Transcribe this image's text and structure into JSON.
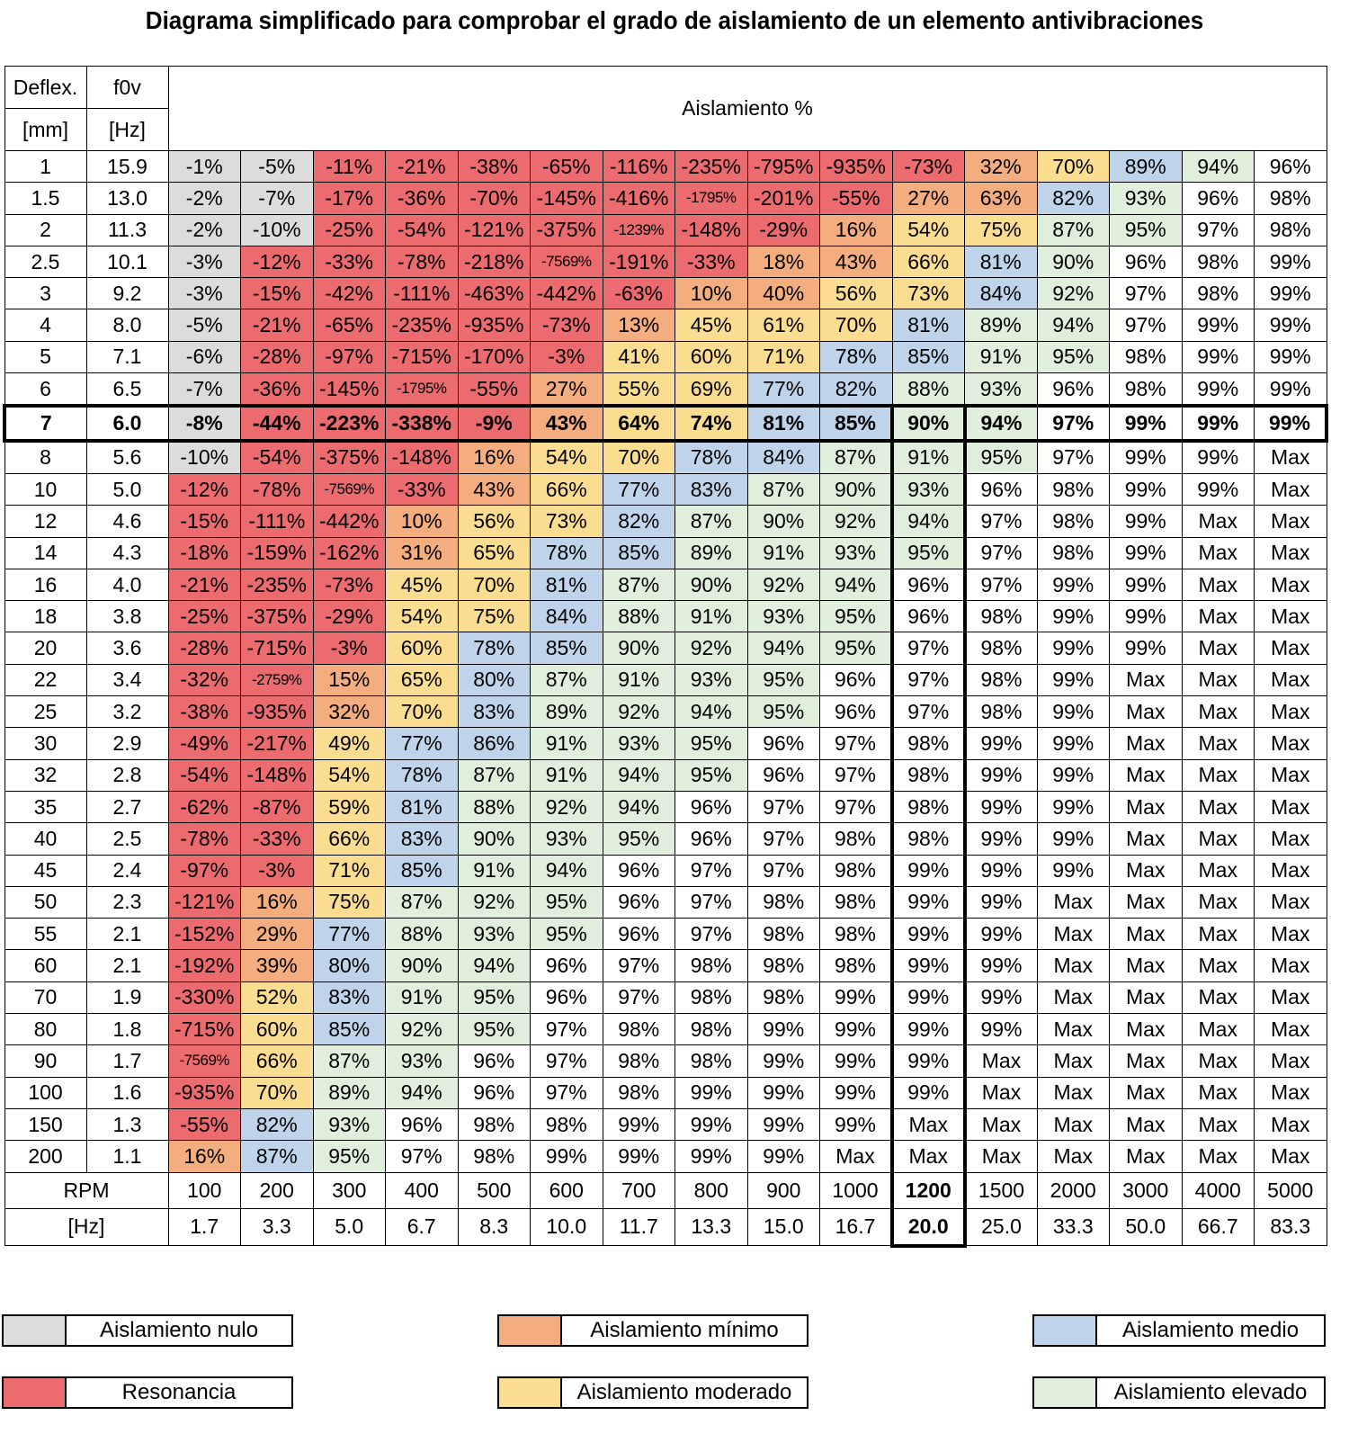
{
  "title": "Diagrama simplificado para comprobar el grado de aislamiento de un elemento antivibraciones",
  "colors": {
    "nulo": "#dcdcdc",
    "resonancia": "#ec6b6e",
    "minimo": "#f4ad7e",
    "moderado": "#fbdd92",
    "medio": "#bfd4ea",
    "elevado": "#e0efdc"
  },
  "header": {
    "deflex": "Deflex.",
    "f0v": "f0v",
    "mm": "[mm]",
    "hz": "[Hz]",
    "aislamiento": "Aislamiento %"
  },
  "footer": {
    "rpm_label": "RPM",
    "hz_label": "[Hz]"
  },
  "legend": [
    {
      "label": "Aislamiento nulo",
      "key": "nulo"
    },
    {
      "label": "Aislamiento mínimo",
      "key": "minimo"
    },
    {
      "label": "Aislamiento medio",
      "key": "medio"
    },
    {
      "label": "Resonancia",
      "key": "resonancia"
    },
    {
      "label": "Aislamiento moderado",
      "key": "moderado"
    },
    {
      "label": "Aislamiento elevado",
      "key": "elevado"
    }
  ],
  "chart_data": {
    "type": "table",
    "title": "Diagrama simplificado para comprobar el grado de aislamiento de un elemento antivibraciones",
    "highlight": {
      "row_deflex": "7",
      "col_rpm": "1200"
    },
    "rpm": [
      "100",
      "200",
      "300",
      "400",
      "500",
      "600",
      "700",
      "800",
      "900",
      "1000",
      "1200",
      "1500",
      "2000",
      "3000",
      "4000",
      "5000"
    ],
    "hz": [
      "1.7",
      "3.3",
      "5.0",
      "6.7",
      "8.3",
      "10.0",
      "11.7",
      "13.3",
      "15.0",
      "16.7",
      "20.0",
      "25.0",
      "33.3",
      "50.0",
      "66.7",
      "83.3"
    ],
    "rows": [
      {
        "deflex": "1",
        "f0v": "15.9",
        "values": [
          "-1%",
          "-5%",
          "-11%",
          "-21%",
          "-38%",
          "-65%",
          "-116%",
          "-235%",
          "-795%",
          "-935%",
          "-73%",
          "32%",
          "70%",
          "89%",
          "94%",
          "96%"
        ],
        "cat": "NNRRRRRRRRRIMDE-"
      },
      {
        "deflex": "1.5",
        "f0v": "13.0",
        "values": [
          "-2%",
          "-7%",
          "-17%",
          "-36%",
          "-70%",
          "-145%",
          "-416%",
          "-1795%",
          "-201%",
          "-55%",
          "27%",
          "63%",
          "82%",
          "93%",
          "96%",
          "98%"
        ],
        "cat": "NNRRRRRRRRIIDE--"
      },
      {
        "deflex": "2",
        "f0v": "11.3",
        "values": [
          "-2%",
          "-10%",
          "-25%",
          "-54%",
          "-121%",
          "-375%",
          "-1239%",
          "-148%",
          "-29%",
          "16%",
          "54%",
          "75%",
          "87%",
          "95%",
          "97%",
          "98%"
        ],
        "cat": "NNRRRRRRRIMMEE--"
      },
      {
        "deflex": "2.5",
        "f0v": "10.1",
        "values": [
          "-3%",
          "-12%",
          "-33%",
          "-78%",
          "-218%",
          "-7569%",
          "-191%",
          "-33%",
          "18%",
          "43%",
          "66%",
          "81%",
          "90%",
          "96%",
          "98%",
          "99%"
        ],
        "cat": "NRRRRRRRIIMDE---"
      },
      {
        "deflex": "3",
        "f0v": "9.2",
        "values": [
          "-3%",
          "-15%",
          "-42%",
          "-111%",
          "-463%",
          "-442%",
          "-63%",
          "10%",
          "40%",
          "56%",
          "73%",
          "84%",
          "92%",
          "97%",
          "98%",
          "99%"
        ],
        "cat": "NRRRRRRIIMMDE---"
      },
      {
        "deflex": "4",
        "f0v": "8.0",
        "values": [
          "-5%",
          "-21%",
          "-65%",
          "-235%",
          "-935%",
          "-73%",
          "13%",
          "45%",
          "61%",
          "70%",
          "81%",
          "89%",
          "94%",
          "97%",
          "99%",
          "99%"
        ],
        "cat": "NRRRRRIMMMDEE---"
      },
      {
        "deflex": "5",
        "f0v": "7.1",
        "values": [
          "-6%",
          "-28%",
          "-97%",
          "-715%",
          "-170%",
          "-3%",
          "41%",
          "60%",
          "71%",
          "78%",
          "85%",
          "91%",
          "95%",
          "98%",
          "99%",
          "99%"
        ],
        "cat": "NRRRRRMMMDDEE---"
      },
      {
        "deflex": "6",
        "f0v": "6.5",
        "values": [
          "-7%",
          "-36%",
          "-145%",
          "-1795%",
          "-55%",
          "27%",
          "55%",
          "69%",
          "77%",
          "82%",
          "88%",
          "93%",
          "96%",
          "98%",
          "99%",
          "99%"
        ],
        "cat": "NRRRRIMMDDEE----"
      },
      {
        "deflex": "7",
        "f0v": "6.0",
        "values": [
          "-8%",
          "-44%",
          "-223%",
          "-338%",
          "-9%",
          "43%",
          "64%",
          "74%",
          "81%",
          "85%",
          "90%",
          "94%",
          "97%",
          "99%",
          "99%",
          "99%"
        ],
        "cat": "NRRRRIMMDDEE----"
      },
      {
        "deflex": "8",
        "f0v": "5.6",
        "values": [
          "-10%",
          "-54%",
          "-375%",
          "-148%",
          "16%",
          "54%",
          "70%",
          "78%",
          "84%",
          "87%",
          "91%",
          "95%",
          "97%",
          "99%",
          "99%",
          "Max"
        ],
        "cat": "NRRRIMMDDEEE----"
      },
      {
        "deflex": "10",
        "f0v": "5.0",
        "values": [
          "-12%",
          "-78%",
          "-7569%",
          "-33%",
          "43%",
          "66%",
          "77%",
          "83%",
          "87%",
          "90%",
          "93%",
          "96%",
          "98%",
          "99%",
          "99%",
          "Max"
        ],
        "cat": "RRRRIMDDEEE-----"
      },
      {
        "deflex": "12",
        "f0v": "4.6",
        "values": [
          "-15%",
          "-111%",
          "-442%",
          "10%",
          "56%",
          "73%",
          "82%",
          "87%",
          "90%",
          "92%",
          "94%",
          "97%",
          "98%",
          "99%",
          "Max",
          "Max"
        ],
        "cat": "RRRIMMDEEEE-----"
      },
      {
        "deflex": "14",
        "f0v": "4.3",
        "values": [
          "-18%",
          "-159%",
          "-162%",
          "31%",
          "65%",
          "78%",
          "85%",
          "89%",
          "91%",
          "93%",
          "95%",
          "97%",
          "98%",
          "99%",
          "Max",
          "Max"
        ],
        "cat": "RRRIMDDEEEE-----"
      },
      {
        "deflex": "16",
        "f0v": "4.0",
        "values": [
          "-21%",
          "-235%",
          "-73%",
          "45%",
          "70%",
          "81%",
          "87%",
          "90%",
          "92%",
          "94%",
          "96%",
          "97%",
          "99%",
          "99%",
          "Max",
          "Max"
        ],
        "cat": "RRRMMDEEEE------"
      },
      {
        "deflex": "18",
        "f0v": "3.8",
        "values": [
          "-25%",
          "-375%",
          "-29%",
          "54%",
          "75%",
          "84%",
          "88%",
          "91%",
          "93%",
          "95%",
          "96%",
          "98%",
          "99%",
          "99%",
          "Max",
          "Max"
        ],
        "cat": "RRRMMDEEEE------"
      },
      {
        "deflex": "20",
        "f0v": "3.6",
        "values": [
          "-28%",
          "-715%",
          "-3%",
          "60%",
          "78%",
          "85%",
          "90%",
          "92%",
          "94%",
          "95%",
          "97%",
          "98%",
          "99%",
          "99%",
          "Max",
          "Max"
        ],
        "cat": "RRRMDDEEEE------"
      },
      {
        "deflex": "22",
        "f0v": "3.4",
        "values": [
          "-32%",
          "-2759%",
          "15%",
          "65%",
          "80%",
          "87%",
          "91%",
          "93%",
          "95%",
          "96%",
          "97%",
          "98%",
          "99%",
          "Max",
          "Max",
          "Max"
        ],
        "cat": "RRIMDEEEE-------"
      },
      {
        "deflex": "25",
        "f0v": "3.2",
        "values": [
          "-38%",
          "-935%",
          "32%",
          "70%",
          "83%",
          "89%",
          "92%",
          "94%",
          "95%",
          "96%",
          "97%",
          "98%",
          "99%",
          "Max",
          "Max",
          "Max"
        ],
        "cat": "RRIMDEEEE-------"
      },
      {
        "deflex": "30",
        "f0v": "2.9",
        "values": [
          "-49%",
          "-217%",
          "49%",
          "77%",
          "86%",
          "91%",
          "93%",
          "95%",
          "96%",
          "97%",
          "98%",
          "99%",
          "99%",
          "Max",
          "Max",
          "Max"
        ],
        "cat": "RRMDDEEE--------"
      },
      {
        "deflex": "32",
        "f0v": "2.8",
        "values": [
          "-54%",
          "-148%",
          "54%",
          "78%",
          "87%",
          "91%",
          "94%",
          "95%",
          "96%",
          "97%",
          "98%",
          "99%",
          "99%",
          "Max",
          "Max",
          "Max"
        ],
        "cat": "RRMDEEEE--------"
      },
      {
        "deflex": "35",
        "f0v": "2.7",
        "values": [
          "-62%",
          "-87%",
          "59%",
          "81%",
          "88%",
          "92%",
          "94%",
          "96%",
          "97%",
          "97%",
          "98%",
          "99%",
          "99%",
          "Max",
          "Max",
          "Max"
        ],
        "cat": "RRMDEEE---------"
      },
      {
        "deflex": "40",
        "f0v": "2.5",
        "values": [
          "-78%",
          "-33%",
          "66%",
          "83%",
          "90%",
          "93%",
          "95%",
          "96%",
          "97%",
          "98%",
          "98%",
          "99%",
          "99%",
          "Max",
          "Max",
          "Max"
        ],
        "cat": "RRMDEEE---------"
      },
      {
        "deflex": "45",
        "f0v": "2.4",
        "values": [
          "-97%",
          "-3%",
          "71%",
          "85%",
          "91%",
          "94%",
          "96%",
          "97%",
          "97%",
          "98%",
          "99%",
          "99%",
          "99%",
          "Max",
          "Max",
          "Max"
        ],
        "cat": "RRMDEE----------"
      },
      {
        "deflex": "50",
        "f0v": "2.3",
        "values": [
          "-121%",
          "16%",
          "75%",
          "87%",
          "92%",
          "95%",
          "96%",
          "97%",
          "98%",
          "98%",
          "99%",
          "99%",
          "Max",
          "Max",
          "Max",
          "Max"
        ],
        "cat": "RIMEEE----------"
      },
      {
        "deflex": "55",
        "f0v": "2.1",
        "values": [
          "-152%",
          "29%",
          "77%",
          "88%",
          "93%",
          "95%",
          "96%",
          "97%",
          "98%",
          "98%",
          "99%",
          "99%",
          "Max",
          "Max",
          "Max",
          "Max"
        ],
        "cat": "RIDEEE----------"
      },
      {
        "deflex": "60",
        "f0v": "2.1",
        "values": [
          "-192%",
          "39%",
          "80%",
          "90%",
          "94%",
          "96%",
          "97%",
          "98%",
          "98%",
          "98%",
          "99%",
          "99%",
          "Max",
          "Max",
          "Max",
          "Max"
        ],
        "cat": "RIDEE-----------"
      },
      {
        "deflex": "70",
        "f0v": "1.9",
        "values": [
          "-330%",
          "52%",
          "83%",
          "91%",
          "95%",
          "96%",
          "97%",
          "98%",
          "98%",
          "99%",
          "99%",
          "99%",
          "Max",
          "Max",
          "Max",
          "Max"
        ],
        "cat": "RMDEE-----------"
      },
      {
        "deflex": "80",
        "f0v": "1.8",
        "values": [
          "-715%",
          "60%",
          "85%",
          "92%",
          "95%",
          "97%",
          "98%",
          "98%",
          "99%",
          "99%",
          "99%",
          "99%",
          "Max",
          "Max",
          "Max",
          "Max"
        ],
        "cat": "RMDEE-----------"
      },
      {
        "deflex": "90",
        "f0v": "1.7",
        "values": [
          "-7569%",
          "66%",
          "87%",
          "93%",
          "96%",
          "97%",
          "98%",
          "98%",
          "99%",
          "99%",
          "99%",
          "Max",
          "Max",
          "Max",
          "Max",
          "Max"
        ],
        "cat": "RMEE------------"
      },
      {
        "deflex": "100",
        "f0v": "1.6",
        "values": [
          "-935%",
          "70%",
          "89%",
          "94%",
          "96%",
          "97%",
          "98%",
          "99%",
          "99%",
          "99%",
          "99%",
          "Max",
          "Max",
          "Max",
          "Max",
          "Max"
        ],
        "cat": "RMEE------------"
      },
      {
        "deflex": "150",
        "f0v": "1.3",
        "values": [
          "-55%",
          "82%",
          "93%",
          "96%",
          "98%",
          "98%",
          "99%",
          "99%",
          "99%",
          "99%",
          "Max",
          "Max",
          "Max",
          "Max",
          "Max",
          "Max"
        ],
        "cat": "RDE-------------"
      },
      {
        "deflex": "200",
        "f0v": "1.1",
        "values": [
          "16%",
          "87%",
          "95%",
          "97%",
          "98%",
          "99%",
          "99%",
          "99%",
          "99%",
          "Max",
          "Max",
          "Max",
          "Max",
          "Max",
          "Max",
          "Max"
        ],
        "cat": "IDE-------------"
      }
    ]
  }
}
